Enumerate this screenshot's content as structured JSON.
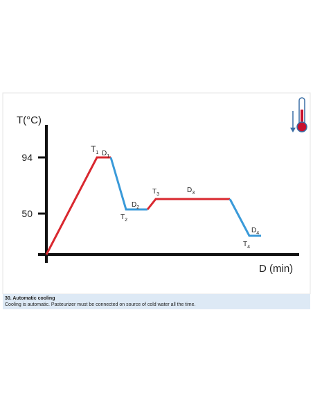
{
  "figure": {
    "y_axis_label": "T(°C)",
    "x_axis_label": "D (min)",
    "y_ticks": [
      "94",
      "50"
    ],
    "point_labels": [
      {
        "main": "T",
        "sub": "1"
      },
      {
        "main": "D",
        "sub": "1"
      },
      {
        "main": "D",
        "sub": "2"
      },
      {
        "main": "T",
        "sub": "2"
      },
      {
        "main": "T",
        "sub": "3"
      },
      {
        "main": "D",
        "sub": "3"
      },
      {
        "main": "D",
        "sub": "4"
      },
      {
        "main": "T",
        "sub": "4"
      }
    ]
  },
  "caption": {
    "title": "30. Automatic cooling",
    "text": "Cooling is automatic. Pasteurizer must be connected on source of cold water all the time."
  }
}
